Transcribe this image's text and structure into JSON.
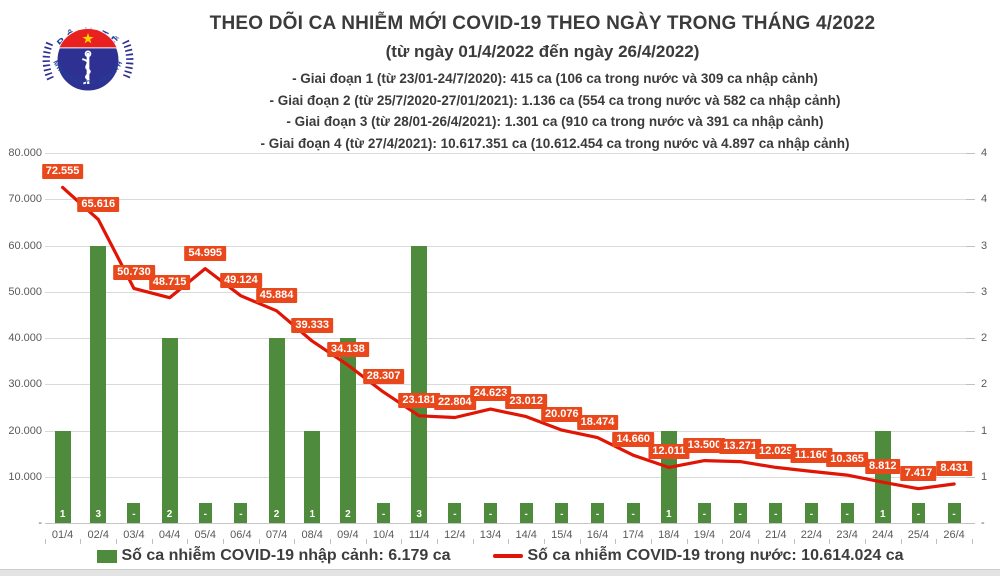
{
  "header": {
    "logo": {
      "top_text": "BỘ Y TẾ",
      "bottom_text": "MINISTRY OF HEALTH"
    },
    "title": "THEO DÕI CA NHIỄM MỚI COVID-19 THEO NGÀY TRONG THÁNG 4/2022",
    "subtitle": "(từ ngày 01/4/2022 đến ngày 26/4/2022)",
    "phase_lines": [
      "- Giai đoạn 1 (từ 23/01-24/7/2020): 415 ca (106 ca trong nước và 309 ca nhập cảnh)",
      "- Giai đoạn 2 (từ 25/7/2020-27/01/2021): 1.136 ca (554 ca trong nước và 582 ca nhập cảnh)",
      "- Giai đoạn 3 (từ 28/01-26/4/2021): 1.301 ca (910 ca trong nước và 391 ca nhập cảnh)",
      "- Giai đoạn 4 (từ 27/4/2021): 10.617.351 ca (10.612.454 ca trong nước và 4.897 ca nhập cảnh)"
    ]
  },
  "chart_data": {
    "type": "combo",
    "title": "THEO DÕI CA NHIỄM MỚI COVID-19 THEO NGÀY TRONG THÁNG 4/2022",
    "categories": [
      "01/4",
      "02/4",
      "03/4",
      "04/4",
      "05/4",
      "06/4",
      "07/4",
      "08/4",
      "09/4",
      "10/4",
      "11/4",
      "12/4",
      "13/4",
      "14/4",
      "15/4",
      "16/4",
      "17/4",
      "18/4",
      "19/4",
      "20/4",
      "21/4",
      "22/4",
      "23/4",
      "24/4",
      "25/4",
      "26/4"
    ],
    "series": [
      {
        "name": "Số ca nhiễm COVID-19 nhập cảnh",
        "type": "bar",
        "axis": "right",
        "color": "#4e8b3d",
        "values": [
          1,
          3,
          0,
          2,
          0,
          0,
          2,
          1,
          2,
          0,
          3,
          0,
          0,
          0,
          0,
          0,
          0,
          1,
          0,
          0,
          0,
          0,
          0,
          1,
          0,
          0
        ],
        "labels": [
          "1",
          "3",
          "-",
          "2",
          "-",
          "-",
          "2",
          "1",
          "2",
          "-",
          "3",
          "-",
          "-",
          "-",
          "-",
          "-",
          "-",
          "1",
          "-",
          "-",
          "-",
          "-",
          "-",
          "1",
          "-",
          "-"
        ]
      },
      {
        "name": "Số ca nhiễm COVID-19 trong nước",
        "type": "line",
        "axis": "left",
        "color": "#e01505",
        "values": [
          72555,
          65616,
          50730,
          48715,
          54995,
          49124,
          45884,
          39333,
          34138,
          28307,
          23181,
          22804,
          24623,
          23012,
          20076,
          18474,
          14660,
          12011,
          13500,
          13271,
          12029,
          11160,
          10365,
          8812,
          7417,
          8431
        ],
        "labels": [
          "72.555",
          "65.616",
          "50.730",
          "48.715",
          "54.995",
          "49.124",
          "45.884",
          "39.333",
          "34.138",
          "28.307",
          "23.181",
          "22.804",
          "24.623",
          "23.012",
          "20.076",
          "18.474",
          "14.660",
          "12.011",
          "13.500",
          "13.271",
          "12.029",
          "11.160",
          "10.365",
          "8.812",
          "7.417",
          "8.431"
        ]
      }
    ],
    "left_axis": {
      "min": 0,
      "max": 80000,
      "tick_labels": [
        "80.000",
        "70.000",
        "60.000",
        "50.000",
        "40.000",
        "30.000",
        "20.000",
        "10.000",
        "-"
      ]
    },
    "right_axis": {
      "min": 0,
      "max": 4,
      "tick_labels": [
        "4",
        "4",
        "3",
        "3",
        "2",
        "2",
        "1",
        "1",
        "-"
      ]
    },
    "grid": true,
    "legend_position": "bottom",
    "label_box_color": "#e8481b",
    "gridline_color": "#dadada"
  },
  "legend": {
    "bar_label": "Số ca nhiễm COVID-19 nhập cảnh: 6.179 ca",
    "line_label": "Số ca nhiễm COVID-19 trong nước: 10.614.024 ca"
  }
}
